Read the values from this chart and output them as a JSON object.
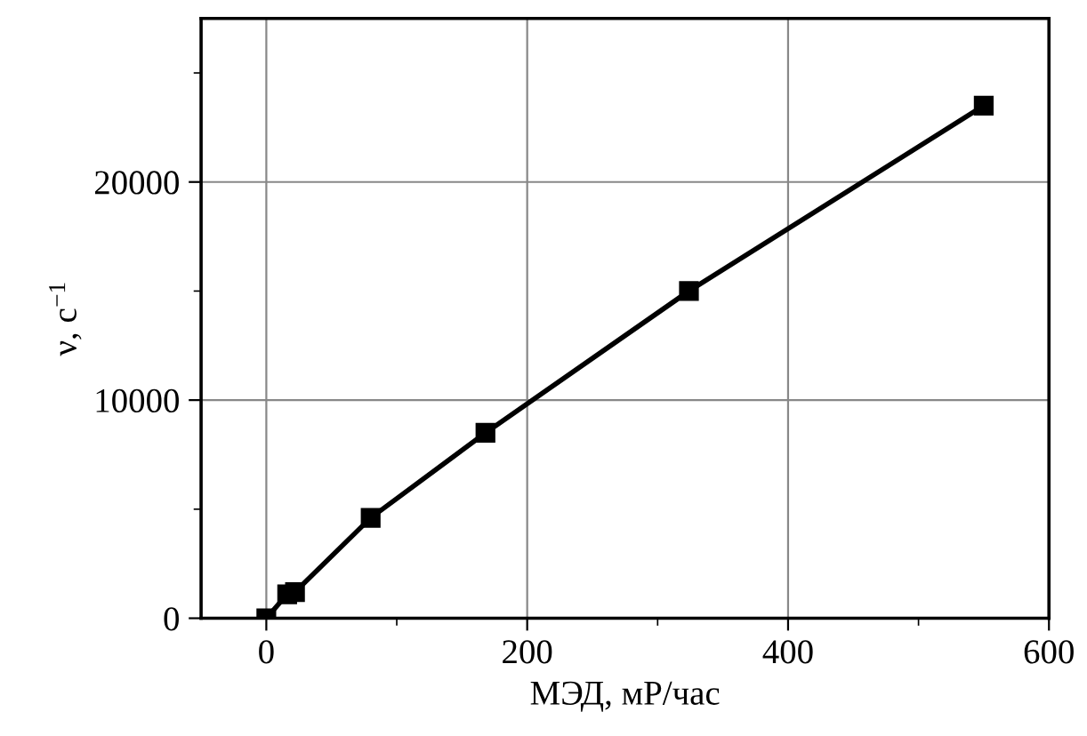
{
  "chart_data": {
    "type": "line",
    "xlabel": "МЭД, мР/час",
    "ylabel": "ν, с$^{−1}$",
    "x": [
      0,
      16,
      22,
      80,
      168,
      324,
      550
    ],
    "series": [
      {
        "color": "#000000",
        "values": [
          0,
          1100,
          1200,
          4600,
          8500,
          15000,
          23500
        ]
      }
    ],
    "marker": "square",
    "line_style": "solid",
    "grid": true,
    "xlim": [
      -50,
      600
    ],
    "xticks": [
      0,
      {
        "value": 100,
        "label": null
      },
      200,
      {
        "value": 300,
        "label": null
      },
      400,
      {
        "value": 500,
        "label": null
      },
      600
    ],
    "ylim": [
      0,
      27500
    ],
    "yticks": [
      0,
      {
        "value": 5000,
        "label": null
      },
      10000,
      {
        "value": 15000,
        "label": null
      },
      20000,
      {
        "value": 25000,
        "label": null
      }
    ]
  }
}
